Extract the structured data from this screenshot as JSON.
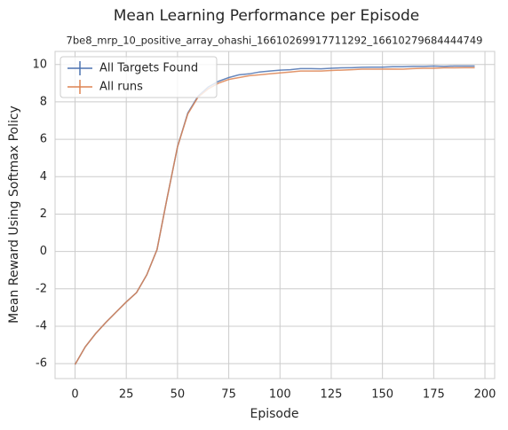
{
  "chart_data": {
    "type": "line",
    "title": "Mean Learning Performance per Episode",
    "subtitle": "7be8_mrp_10_positive_array_ohashi_16610269917711292_16610279684444749",
    "x_label": "Episode",
    "y_label": "Mean Reward Using Softmax Policy",
    "x": [
      0,
      5,
      10,
      15,
      20,
      25,
      30,
      35,
      40,
      45,
      50,
      55,
      60,
      65,
      70,
      75,
      80,
      85,
      90,
      95,
      100,
      105,
      110,
      115,
      120,
      125,
      130,
      135,
      140,
      145,
      150,
      155,
      160,
      165,
      170,
      175,
      180,
      185,
      190,
      195
    ],
    "series": [
      {
        "name": "All Targets Found",
        "color": "#4c72b0",
        "values": [
          -6.05,
          -5.1,
          -4.4,
          -3.8,
          -3.25,
          -2.7,
          -2.2,
          -1.25,
          0.1,
          2.9,
          5.6,
          7.4,
          8.3,
          8.8,
          9.1,
          9.3,
          9.45,
          9.5,
          9.6,
          9.65,
          9.7,
          9.72,
          9.78,
          9.78,
          9.77,
          9.8,
          9.82,
          9.83,
          9.85,
          9.86,
          9.86,
          9.88,
          9.88,
          9.9,
          9.9,
          9.92,
          9.9,
          9.92,
          9.92,
          9.92
        ]
      },
      {
        "name": "All runs",
        "color": "#dd8452",
        "values": [
          -6.05,
          -5.1,
          -4.4,
          -3.8,
          -3.25,
          -2.7,
          -2.2,
          -1.25,
          0.1,
          2.9,
          5.6,
          7.35,
          8.25,
          8.7,
          9.0,
          9.2,
          9.3,
          9.4,
          9.45,
          9.5,
          9.55,
          9.6,
          9.65,
          9.65,
          9.65,
          9.68,
          9.7,
          9.72,
          9.75,
          9.75,
          9.75,
          9.76,
          9.75,
          9.78,
          9.8,
          9.8,
          9.82,
          9.82,
          9.83,
          9.83
        ]
      }
    ],
    "xlim": [
      -9.75,
      204.75
    ],
    "xticks": [
      0,
      25,
      50,
      75,
      100,
      125,
      150,
      175,
      200
    ],
    "ylim": [
      -6.8,
      10.7
    ],
    "yticks": [
      -6,
      -4,
      -2,
      0,
      2,
      4,
      6,
      8,
      10
    ],
    "grid": true,
    "legend": "upper left"
  }
}
